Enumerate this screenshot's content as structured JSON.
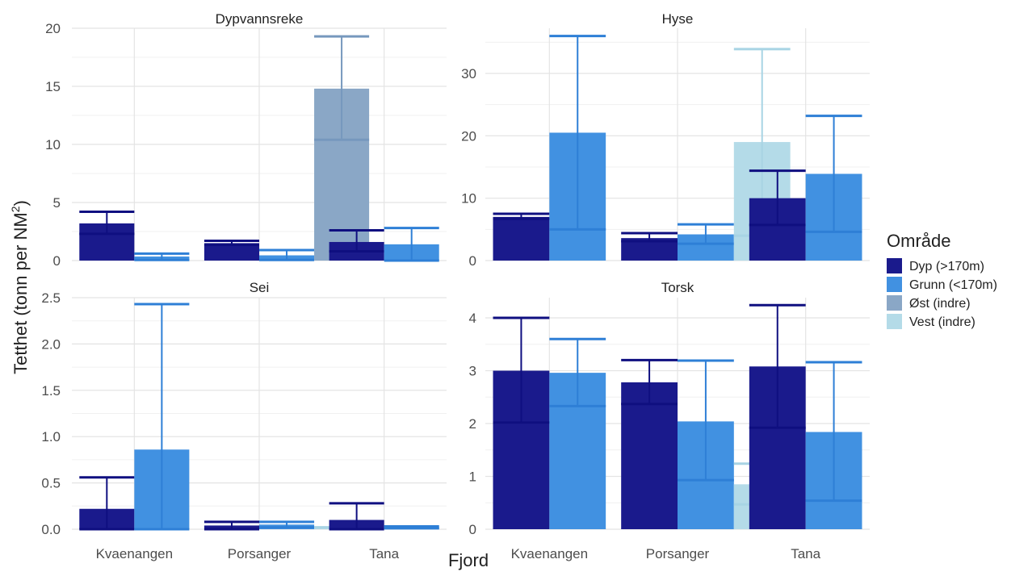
{
  "chart_data": {
    "type": "bar",
    "facet_by": "Art",
    "xlabel": "Fjord",
    "ylabel": "Tetthet (tonn per NM",
    "ylabel_sup": "2",
    "ylabel_close": ")",
    "categories": [
      "Kvaenangen",
      "Porsanger",
      "Tana"
    ],
    "legend": {
      "title": "Område",
      "position": "right",
      "entries": [
        {
          "name": "Dyp (>170m)",
          "color": "#1a1a8c"
        },
        {
          "name": "Grunn (<170m)",
          "color": "#4191e1"
        },
        {
          "name": "Øst (indre)",
          "color": "#8aa7c6"
        },
        {
          "name": "Vest (indre)",
          "color": "#b4dbe8"
        }
      ]
    },
    "error_colors": {
      "Dyp (>170m)": "#0f0f80",
      "Grunn (<170m)": "#2e7fd6",
      "Øst (indre)": "#7698bd",
      "Vest (indre)": "#a8d4e4"
    },
    "panels": [
      {
        "title": "Dypvannsreke",
        "ylim": [
          0,
          20
        ],
        "yticks": [
          0,
          5,
          10,
          15,
          20
        ],
        "ytick_labels": [
          "0",
          "5",
          "10",
          "15",
          "20"
        ],
        "groups": [
          {
            "category": "Kvaenangen",
            "bars": [
              {
                "series": "Dyp (>170m)",
                "value": 3.2,
                "lo": 2.3,
                "hi": 4.2
              },
              {
                "series": "Grunn (<170m)",
                "value": 0.35,
                "lo": 0.05,
                "hi": 0.6
              }
            ]
          },
          {
            "category": "Porsanger",
            "bars": [
              {
                "series": "Dyp (>170m)",
                "value": 1.5,
                "lo": 1.35,
                "hi": 1.7
              },
              {
                "series": "Grunn (<170m)",
                "value": 0.45,
                "lo": 0.05,
                "hi": 0.9
              },
              {
                "series": "Øst (indre)",
                "value": 14.8,
                "lo": 10.4,
                "hi": 19.3
              }
            ]
          },
          {
            "category": "Tana",
            "bars": [
              {
                "series": "Dyp (>170m)",
                "value": 1.6,
                "lo": 0.8,
                "hi": 2.6
              },
              {
                "series": "Grunn (<170m)",
                "value": 1.4,
                "lo": 0.0,
                "hi": 2.8
              }
            ]
          }
        ]
      },
      {
        "title": "Hyse",
        "ylim": [
          0,
          36
        ],
        "yticks": [
          0,
          10,
          20,
          30
        ],
        "ytick_labels": [
          "0",
          "10",
          "20",
          "30"
        ],
        "groups": [
          {
            "category": "Kvaenangen",
            "bars": [
              {
                "series": "Dyp (>170m)",
                "value": 7.0,
                "lo": 6.7,
                "hi": 7.5
              },
              {
                "series": "Grunn (<170m)",
                "value": 20.5,
                "lo": 5.0,
                "hi": 36.0
              }
            ]
          },
          {
            "category": "Porsanger",
            "bars": [
              {
                "series": "Dyp (>170m)",
                "value": 3.6,
                "lo": 3.1,
                "hi": 4.4
              },
              {
                "series": "Grunn (<170m)",
                "value": 4.2,
                "lo": 2.7,
                "hi": 5.8
              },
              {
                "series": "Vest (indre)",
                "value": 19.0,
                "lo": 4.0,
                "hi": 33.9
              }
            ]
          },
          {
            "category": "Tana",
            "bars": [
              {
                "series": "Dyp (>170m)",
                "value": 10.0,
                "lo": 5.7,
                "hi": 14.4
              },
              {
                "series": "Grunn (<170m)",
                "value": 13.9,
                "lo": 4.6,
                "hi": 23.2
              }
            ]
          }
        ]
      },
      {
        "title": "Sei",
        "ylim": [
          0,
          2.5
        ],
        "yticks": [
          0,
          0.5,
          1.0,
          1.5,
          2.0,
          2.5
        ],
        "ytick_labels": [
          "0.0",
          "0.5",
          "1.0",
          "1.5",
          "2.0",
          "2.5"
        ],
        "groups": [
          {
            "category": "Kvaenangen",
            "bars": [
              {
                "series": "Dyp (>170m)",
                "value": 0.22,
                "lo": 0.0,
                "hi": 0.56
              },
              {
                "series": "Grunn (<170m)",
                "value": 0.86,
                "lo": 0.0,
                "hi": 2.43
              }
            ]
          },
          {
            "category": "Porsanger",
            "bars": [
              {
                "series": "Dyp (>170m)",
                "value": 0.04,
                "lo": 0.0,
                "hi": 0.08
              },
              {
                "series": "Grunn (<170m)",
                "value": 0.05,
                "lo": 0.02,
                "hi": 0.08
              },
              {
                "series": "Vest (indre)",
                "value": 0.02,
                "lo": 0.02,
                "hi": 0.02
              }
            ]
          },
          {
            "category": "Tana",
            "bars": [
              {
                "series": "Dyp (>170m)",
                "value": 0.1,
                "lo": 0.0,
                "hi": 0.28
              },
              {
                "series": "Grunn (<170m)",
                "value": 0.02,
                "lo": 0.01,
                "hi": 0.03
              }
            ]
          }
        ]
      },
      {
        "title": "Torsk",
        "ylim": [
          0,
          4.3
        ],
        "yticks": [
          0,
          1,
          2,
          3,
          4
        ],
        "ytick_labels": [
          "0",
          "1",
          "2",
          "3",
          "4"
        ],
        "groups": [
          {
            "category": "Kvaenangen",
            "bars": [
              {
                "series": "Dyp (>170m)",
                "value": 3.0,
                "lo": 2.02,
                "hi": 4.0
              },
              {
                "series": "Grunn (<170m)",
                "value": 2.96,
                "lo": 2.33,
                "hi": 3.6
              }
            ]
          },
          {
            "category": "Porsanger",
            "bars": [
              {
                "series": "Dyp (>170m)",
                "value": 2.78,
                "lo": 2.37,
                "hi": 3.2
              },
              {
                "series": "Grunn (<170m)",
                "value": 2.04,
                "lo": 0.93,
                "hi": 3.19
              },
              {
                "series": "Vest (indre)",
                "value": 0.85,
                "lo": 0.47,
                "hi": 1.24
              }
            ]
          },
          {
            "category": "Tana",
            "bars": [
              {
                "series": "Dyp (>170m)",
                "value": 3.08,
                "lo": 1.92,
                "hi": 4.24
              },
              {
                "series": "Grunn (<170m)",
                "value": 1.84,
                "lo": 0.54,
                "hi": 3.16
              }
            ]
          }
        ]
      }
    ]
  }
}
